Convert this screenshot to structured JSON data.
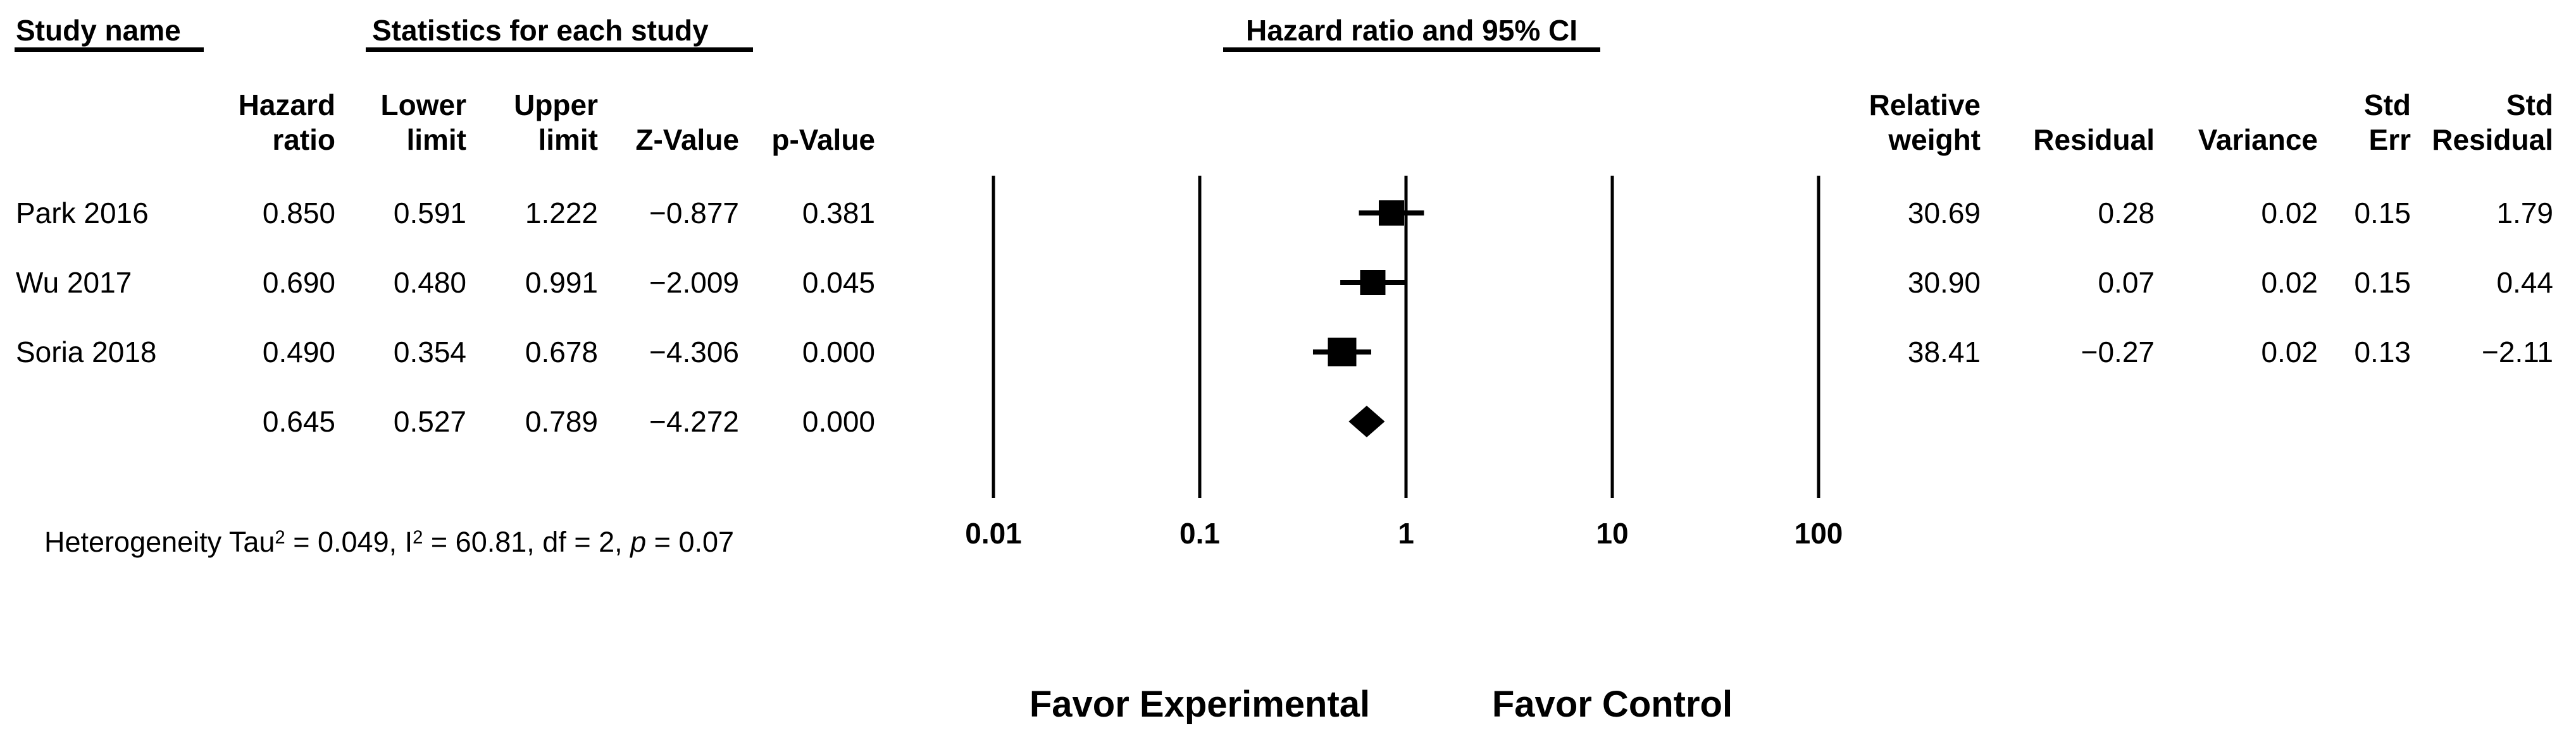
{
  "header": {
    "study_name_title": "Study name",
    "stats_title": "Statistics for each study",
    "plot_title": "Hazard ratio and 95% CI",
    "columns_left": [
      {
        "lines": [
          "Hazard",
          "ratio"
        ]
      },
      {
        "lines": [
          "Lower",
          "limit"
        ]
      },
      {
        "lines": [
          "Upper",
          "limit"
        ]
      },
      {
        "lines": [
          "",
          "Z-Value"
        ]
      },
      {
        "lines": [
          "",
          "p-Value"
        ]
      }
    ],
    "columns_right": [
      {
        "lines": [
          "Relative",
          "weight"
        ]
      },
      {
        "lines": [
          "",
          "Residual"
        ]
      },
      {
        "lines": [
          "",
          "Variance"
        ]
      },
      {
        "lines": [
          "Std",
          "Err"
        ]
      },
      {
        "lines": [
          "Std",
          "Residual"
        ]
      }
    ]
  },
  "studies": [
    {
      "name": "Park 2016",
      "hazard_ratio": "0.850",
      "lower_limit": "0.591",
      "upper_limit": "1.222",
      "z_value": "−0.877",
      "p_value": "0.381",
      "relative_weight": "30.69",
      "residual": "0.28",
      "variance": "0.02",
      "std_err": "0.15",
      "std_residual": "1.79"
    },
    {
      "name": "Wu 2017",
      "hazard_ratio": "0.690",
      "lower_limit": "0.480",
      "upper_limit": "0.991",
      "z_value": "−2.009",
      "p_value": "0.045",
      "relative_weight": "30.90",
      "residual": "0.07",
      "variance": "0.02",
      "std_err": "0.15",
      "std_residual": "0.44"
    },
    {
      "name": "Soria 2018",
      "hazard_ratio": "0.490",
      "lower_limit": "0.354",
      "upper_limit": "0.678",
      "z_value": "−4.306",
      "p_value": "0.000",
      "relative_weight": "38.41",
      "residual": "−0.27",
      "variance": "0.02",
      "std_err": "0.13",
      "std_residual": "−2.11"
    }
  ],
  "summary_row": {
    "name": "",
    "hazard_ratio": "0.645",
    "lower_limit": "0.527",
    "upper_limit": "0.789",
    "z_value": "−4.272",
    "p_value": "0.000",
    "relative_weight": "",
    "residual": "",
    "variance": "",
    "std_err": "",
    "std_residual": ""
  },
  "heterogeneity": {
    "seg1": "Heterogeneity Tau",
    "sup1": "2",
    "seg2": " = 0.049, I",
    "sup2": "2",
    "seg3": " = 60.81, df = 2, ",
    "p_symbol": "p",
    "seg4": " = 0.07"
  },
  "axis": {
    "tick_labels": [
      "0.01",
      "0.1",
      "1",
      "10",
      "100"
    ]
  },
  "footer": {
    "favor_left": "Favor Experimental",
    "favor_right": "Favor Control"
  },
  "colors": {
    "ink": "#000000",
    "background": "#ffffff"
  },
  "chart_data": {
    "type": "forest",
    "title": "Hazard ratio and 95% CI",
    "x_scale": "log10",
    "x_ticks": [
      0.01,
      0.1,
      1,
      10,
      100
    ],
    "x_range": [
      0.01,
      100
    ],
    "series": [
      {
        "study": "Park 2016",
        "hr": 0.85,
        "ci_low": 0.591,
        "ci_high": 1.222,
        "z": -0.877,
        "p": 0.381,
        "weight": 30.69
      },
      {
        "study": "Wu 2017",
        "hr": 0.69,
        "ci_low": 0.48,
        "ci_high": 0.991,
        "z": -2.009,
        "p": 0.045,
        "weight": 30.9
      },
      {
        "study": "Soria 2018",
        "hr": 0.49,
        "ci_low": 0.354,
        "ci_high": 0.678,
        "z": -4.306,
        "p": 0.0,
        "weight": 38.41
      }
    ],
    "summary": {
      "hr": 0.645,
      "ci_low": 0.527,
      "ci_high": 0.789,
      "z": -4.272,
      "p": 0.0
    },
    "heterogeneity": {
      "tau2": 0.049,
      "i2": 60.81,
      "df": 2,
      "p": 0.07
    },
    "favor_left_label": "Favor Experimental",
    "favor_right_label": "Favor Control",
    "grid": "vertical-lines-at-ticks",
    "legend": "none"
  }
}
